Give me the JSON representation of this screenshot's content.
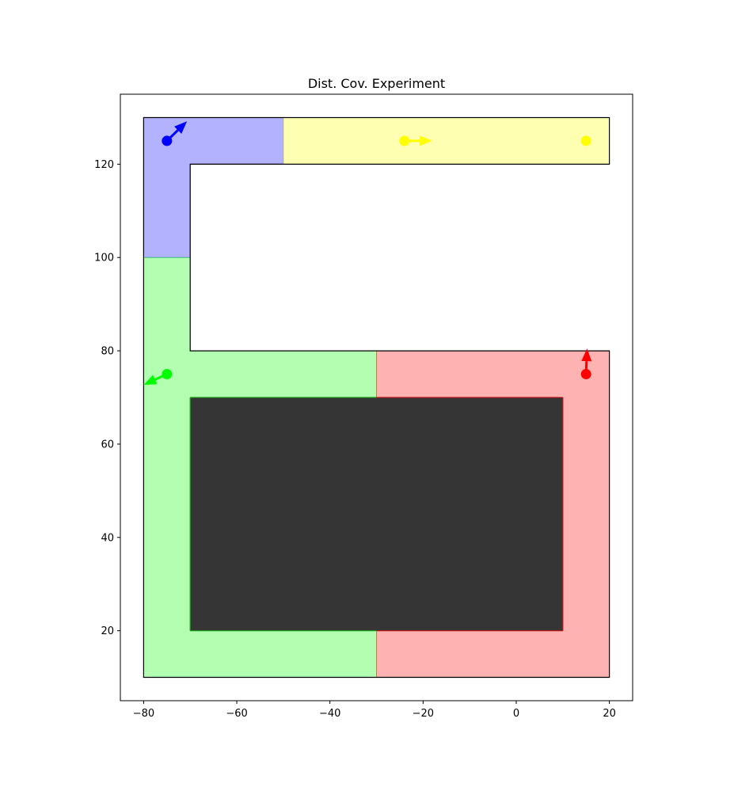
{
  "chart_data": {
    "type": "scatter",
    "title": "Dist. Cov. Experiment",
    "xlabel": "",
    "ylabel": "",
    "xlim": [
      -85,
      25
    ],
    "ylim": [
      5,
      135
    ],
    "x_ticks": [
      -80,
      -60,
      -40,
      -20,
      0,
      20
    ],
    "y_ticks": [
      20,
      40,
      60,
      80,
      100,
      120
    ],
    "x_tick_labels": [
      "−80",
      "−60",
      "−40",
      "−20",
      "0",
      "20"
    ],
    "y_tick_labels": [
      "20",
      "40",
      "60",
      "80",
      "100",
      "120"
    ],
    "grid": false,
    "legend": "none",
    "environment": {
      "outline": [
        [
          -80,
          10
        ],
        [
          20,
          10
        ],
        [
          20,
          80
        ],
        [
          -70,
          80
        ],
        [
          -70,
          120
        ],
        [
          20,
          120
        ],
        [
          20,
          130
        ],
        [
          -80,
          130
        ]
      ],
      "obstacle": {
        "x0": -70,
        "y0": 20,
        "x1": 10,
        "y1": 70,
        "color": "#353535"
      }
    },
    "regions": [
      {
        "name": "blue",
        "color": "#0000ff",
        "polygon": [
          [
            -80,
            100
          ],
          [
            -70,
            100
          ],
          [
            -70,
            120
          ],
          [
            -50,
            120
          ],
          [
            -50,
            130
          ],
          [
            -80,
            130
          ]
        ]
      },
      {
        "name": "yellow",
        "color": "#ffff00",
        "polygon": [
          [
            -50,
            120
          ],
          [
            20,
            120
          ],
          [
            20,
            130
          ],
          [
            -50,
            130
          ]
        ]
      },
      {
        "name": "green",
        "color": "#00ff00",
        "polygon": [
          [
            -80,
            10
          ],
          [
            -30,
            10
          ],
          [
            -30,
            20
          ],
          [
            -70,
            20
          ],
          [
            -70,
            70
          ],
          [
            -30,
            70
          ],
          [
            -30,
            80
          ],
          [
            -70,
            80
          ],
          [
            -70,
            100
          ],
          [
            -80,
            100
          ]
        ]
      },
      {
        "name": "red",
        "color": "#ff0000",
        "polygon": [
          [
            -30,
            10
          ],
          [
            20,
            10
          ],
          [
            20,
            80
          ],
          [
            -30,
            80
          ],
          [
            -30,
            70
          ],
          [
            10,
            70
          ],
          [
            10,
            20
          ],
          [
            -30,
            20
          ]
        ]
      }
    ],
    "robots": [
      {
        "name": "blue",
        "color": "#0000ff",
        "x": -75,
        "y": 125,
        "dx": 4.3,
        "dy": 4.2
      },
      {
        "name": "yellow",
        "color": "#ffff00",
        "x": -24,
        "y": 125,
        "dx": 6,
        "dy": 0
      },
      {
        "name": "green",
        "color": "#00ff00",
        "x": -75,
        "y": 75,
        "dx": -5,
        "dy": -2.3
      },
      {
        "name": "red",
        "color": "#ff0000",
        "x": 15,
        "y": 75,
        "dx": 0.2,
        "dy": 5.5
      }
    ],
    "targets": [
      {
        "name": "yellow",
        "color": "#ffff00",
        "x": 15,
        "y": 125
      }
    ]
  }
}
